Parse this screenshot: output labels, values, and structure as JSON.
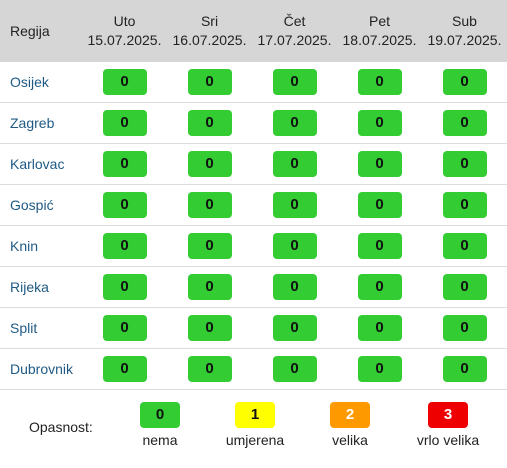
{
  "colors": {
    "nema": "#33cc33",
    "umjerena": "#ffff00",
    "velika": "#ff9900",
    "vrlo_velika": "#ee0000"
  },
  "header": {
    "region_label": "Regija",
    "days": [
      {
        "day": "Uto",
        "date": "15.07.2025."
      },
      {
        "day": "Sri",
        "date": "16.07.2025."
      },
      {
        "day": "Čet",
        "date": "17.07.2025."
      },
      {
        "day": "Pet",
        "date": "18.07.2025."
      },
      {
        "day": "Sub",
        "date": "19.07.2025."
      }
    ]
  },
  "rows": [
    {
      "region": "Osijek",
      "values": [
        "0",
        "0",
        "0",
        "0",
        "0"
      ]
    },
    {
      "region": "Zagreb",
      "values": [
        "0",
        "0",
        "0",
        "0",
        "0"
      ]
    },
    {
      "region": "Karlovac",
      "values": [
        "0",
        "0",
        "0",
        "0",
        "0"
      ]
    },
    {
      "region": "Gospić",
      "values": [
        "0",
        "0",
        "0",
        "0",
        "0"
      ]
    },
    {
      "region": "Knin",
      "values": [
        "0",
        "0",
        "0",
        "0",
        "0"
      ]
    },
    {
      "region": "Rijeka",
      "values": [
        "0",
        "0",
        "0",
        "0",
        "0"
      ]
    },
    {
      "region": "Split",
      "values": [
        "0",
        "0",
        "0",
        "0",
        "0"
      ]
    },
    {
      "region": "Dubrovnik",
      "values": [
        "0",
        "0",
        "0",
        "0",
        "0"
      ]
    }
  ],
  "legend": {
    "title": "Opasnost:",
    "items": [
      {
        "value": "0",
        "label": "nema",
        "color": "#33cc33",
        "text_color": "#111111"
      },
      {
        "value": "1",
        "label": "umjerena",
        "color": "#ffff00",
        "text_color": "#111111"
      },
      {
        "value": "2",
        "label": "velika",
        "color": "#ff9900",
        "text_color": "#ffffff"
      },
      {
        "value": "3",
        "label": "vrlo velika",
        "color": "#ee0000",
        "text_color": "#ffffff"
      }
    ]
  }
}
